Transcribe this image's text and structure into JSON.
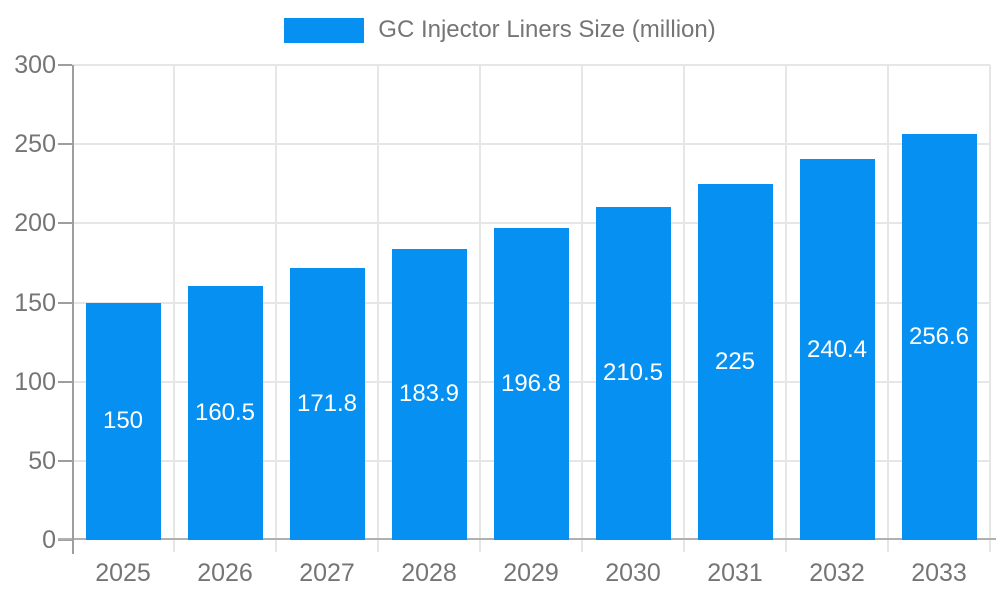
{
  "colors": {
    "bar": "#0590f2",
    "grid": "#e6e6e6",
    "y_axis": "#9e9e9e",
    "x_axis": "#b0b0b0",
    "tick_label": "#757575",
    "value_label": "#ffffff",
    "background": "#ffffff"
  },
  "chart_data": {
    "type": "bar",
    "categories": [
      "2025",
      "2026",
      "2027",
      "2028",
      "2029",
      "2030",
      "2031",
      "2032",
      "2033"
    ],
    "series": [
      {
        "name": "GC Injector Liners Size (million)",
        "values": [
          150,
          160.5,
          171.8,
          183.9,
          196.8,
          210.5,
          225,
          240.4,
          256.6
        ]
      }
    ],
    "value_labels": [
      "150",
      "160.5",
      "171.8",
      "183.9",
      "196.8",
      "210.5",
      "225",
      "240.4",
      "256.6"
    ],
    "title": "",
    "xlabel": "",
    "ylabel": "",
    "ylim": [
      0,
      300
    ],
    "yticks": [
      0,
      50,
      100,
      150,
      200,
      250,
      300
    ],
    "grid": true,
    "legend_position": "top-center",
    "value_label_position": "inside-middle"
  }
}
